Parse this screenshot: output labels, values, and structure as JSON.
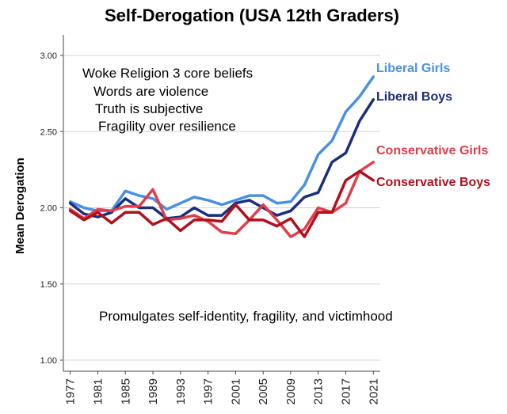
{
  "chart_data": {
    "type": "line",
    "title": "Self-Derogation (USA 12th Graders)",
    "ylabel": "Mean Derogation",
    "xlabel": "",
    "ylim": [
      1.0,
      3.0
    ],
    "yticks": [
      "1.00",
      "1.50",
      "2.00",
      "2.50",
      "3.00"
    ],
    "xlim": [
      1976,
      2022
    ],
    "xticks": [
      "1977",
      "1981",
      "1985",
      "1989",
      "1993",
      "1997",
      "2001",
      "2005",
      "2009",
      "2013",
      "2017",
      "2021"
    ],
    "grid": true,
    "annotations": {
      "top": [
        "Woke Religion 3 core beliefs",
        "Words are violence",
        "Truth is subjective",
        "Fragility over resilience"
      ],
      "bottom": "Promulgates self-identity, fragility, and victimhood"
    },
    "x": [
      1977,
      1979,
      1981,
      1983,
      1985,
      1987,
      1989,
      1991,
      1993,
      1995,
      1997,
      1999,
      2001,
      2003,
      2005,
      2007,
      2009,
      2011,
      2013,
      2015,
      2017,
      2019,
      2021
    ],
    "series": [
      {
        "name": "Liberal Girls",
        "color": "#4a90e2",
        "values": [
          2.04,
          2.0,
          1.98,
          1.98,
          2.11,
          2.08,
          2.06,
          1.99,
          2.03,
          2.07,
          2.05,
          2.02,
          2.05,
          2.08,
          2.08,
          2.03,
          2.04,
          2.15,
          2.35,
          2.44,
          2.63,
          2.73,
          2.86
        ]
      },
      {
        "name": "Liberal Boys",
        "color": "#1a2e7a",
        "values": [
          2.03,
          1.96,
          1.94,
          1.97,
          2.06,
          2.0,
          2.0,
          1.93,
          1.94,
          2.0,
          1.95,
          1.95,
          2.03,
          2.05,
          2.0,
          1.95,
          1.98,
          2.07,
          2.1,
          2.3,
          2.36,
          2.57,
          2.71
        ]
      },
      {
        "name": "Conservative Girls",
        "color": "#e03e4a",
        "values": [
          1.99,
          1.93,
          1.99,
          1.98,
          2.01,
          2.01,
          2.12,
          1.92,
          1.93,
          1.95,
          1.91,
          1.84,
          1.83,
          1.92,
          2.02,
          1.92,
          1.81,
          1.86,
          2.0,
          1.97,
          2.03,
          2.24,
          2.3
        ]
      },
      {
        "name": "Conservative Boys",
        "color": "#b0101e",
        "values": [
          1.98,
          1.92,
          1.97,
          1.9,
          1.97,
          1.97,
          1.89,
          1.93,
          1.85,
          1.92,
          1.92,
          1.91,
          2.02,
          1.92,
          1.92,
          1.88,
          1.93,
          1.81,
          1.97,
          1.97,
          2.18,
          2.24,
          2.18
        ]
      }
    ]
  }
}
